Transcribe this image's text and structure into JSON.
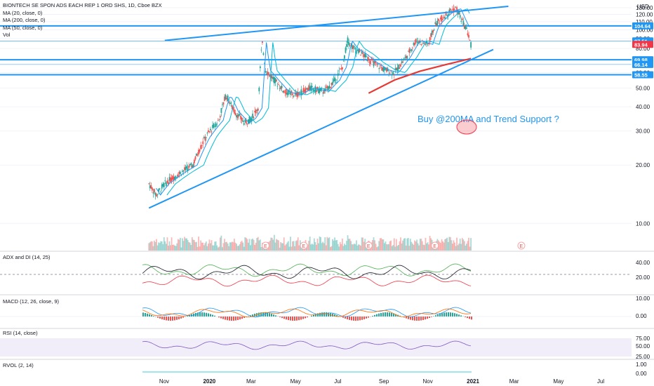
{
  "header": {
    "symbol_line": "BIONTECH SE SPON ADS EACH REP 1 ORD SHS, 1D, Cboe BZX",
    "indicators": [
      "MA (20, close, 0)",
      "MA (200, close, 0)",
      "MA (50, close, 0)",
      "Vol"
    ]
  },
  "currency": "USD",
  "annotation": "Buy @200MA and Trend Support ?",
  "earnings_marker": "E",
  "panes": {
    "adx": "ADX and DI (14, 25)",
    "macd": "MACD (12, 26, close, 9)",
    "rsi": "RSI (14, close)",
    "rvol": "RVOL (2, 14)"
  },
  "chart_data": [
    {
      "type": "candlestick",
      "price_axis_ticks": [
        10,
        20,
        30,
        40,
        50,
        60,
        70,
        80,
        90,
        100,
        110,
        120,
        130
      ],
      "time_axis_labels": [
        "Nov",
        "2020",
        "Mar",
        "May",
        "Jul",
        "Sep",
        "Nov",
        "2021",
        "Mar",
        "May",
        "Jul"
      ],
      "price_tags": [
        {
          "value": "104.64",
          "color": "#2196f3"
        },
        {
          "value": "87.51",
          "color": "#2196f3"
        },
        {
          "value": "83.94",
          "color": "#f23645"
        },
        {
          "value": "69.98",
          "color": "#2196f3"
        },
        {
          "value": "66.14",
          "color": "#2196f3"
        },
        {
          "value": "58.55",
          "color": "#2196f3"
        }
      ],
      "horizontal_levels": [
        104.64,
        69.98,
        58.55
      ],
      "close_path": [
        [
          "Oct 10 2019",
          16
        ],
        [
          "Oct 20 2019",
          14
        ],
        [
          "Nov 1 2019",
          16
        ],
        [
          "Nov 20 2019",
          18
        ],
        [
          "Dec 10 2019",
          20
        ],
        [
          "Dec 28 2019",
          28
        ],
        [
          "Jan 15 2020",
          34
        ],
        [
          "Jan 25 2020",
          46
        ],
        [
          "Feb 5 2020",
          38
        ],
        [
          "Feb 20 2020",
          33
        ],
        [
          "Mar 1 2020",
          35
        ],
        [
          "Mar 10 2020",
          40
        ],
        [
          "Mar 15 2020",
          86
        ],
        [
          "Mar 20 2020",
          62
        ],
        [
          "Apr 1 2020",
          55
        ],
        [
          "Apr 15 2020",
          48
        ],
        [
          "May 1 2020",
          46
        ],
        [
          "May 20 2020",
          50
        ],
        [
          "Jun 10 2020",
          48
        ],
        [
          "Jun 25 2020",
          55
        ],
        [
          "Jul 5 2020",
          65
        ],
        [
          "Jul 12 2020",
          88
        ],
        [
          "Jul 20 2020",
          80
        ],
        [
          "Aug 1 2020",
          75
        ],
        [
          "Aug 15 2020",
          68
        ],
        [
          "Sep 1 2020",
          62
        ],
        [
          "Sep 15 2020",
          60
        ],
        [
          "Oct 1 2020",
          72
        ],
        [
          "Oct 15 2020",
          88
        ],
        [
          "Nov 1 2020",
          84
        ],
        [
          "Nov 10 2020",
          105
        ],
        [
          "Nov 20 2020",
          115
        ],
        [
          "Dec 1 2020",
          125
        ],
        [
          "Dec 10 2020",
          128
        ],
        [
          "Dec 18 2020",
          110
        ],
        [
          "Dec 24 2020",
          100
        ],
        [
          "Dec 30 2020",
          84
        ]
      ],
      "ma_200": [
        [
          "Aug 10 2020",
          47
        ],
        [
          "Sep 15 2020",
          55
        ],
        [
          "Oct 20 2020",
          61
        ],
        [
          "Nov 25 2020",
          66
        ],
        [
          "Dec 30 2020",
          71
        ]
      ],
      "trend_lines": [
        {
          "from": [
            "Oct 10 2019",
            12
          ],
          "to": [
            "Jan 30 2021",
            79
          ]
        },
        {
          "from": [
            "Nov 1 2019",
            88
          ],
          "to": [
            "Feb 20 2021",
            132
          ]
        }
      ]
    }
  ]
}
